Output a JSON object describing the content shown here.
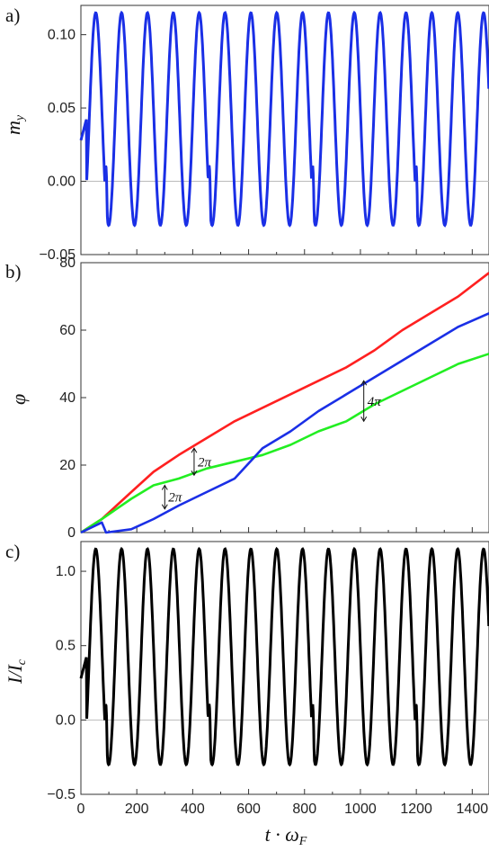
{
  "colors": {
    "red": "#ff2020",
    "green": "#22ee22",
    "blue": "#1a2fe6",
    "black": "#000000"
  },
  "chart_data": [
    {
      "type": "line",
      "panel_label": "a)",
      "ylabel": "m_y",
      "ylim": [
        -0.05,
        0.12
      ],
      "yticks": [
        -0.05,
        0.0,
        0.05,
        0.1
      ],
      "ytick_labels": [
        "−0.05",
        "0.00",
        "0.05",
        "0.10"
      ],
      "xlim": [
        0,
        1460
      ],
      "series_shape": {
        "amplitude_high": 0.115,
        "amplitude_low": -0.03,
        "period": 92.5,
        "phase": 30
      },
      "series": [
        {
          "color": "green",
          "values_desc": "oscillation"
        },
        {
          "color": "red",
          "values_desc": "oscillation"
        },
        {
          "color": "blue",
          "values_desc": "oscillation"
        }
      ]
    },
    {
      "type": "line",
      "panel_label": "b)",
      "ylabel": "φ",
      "ylim": [
        0,
        80
      ],
      "yticks": [
        0,
        20,
        40,
        60,
        80
      ],
      "ytick_labels": [
        "0",
        "20",
        "40",
        "60",
        "80"
      ],
      "xlim": [
        0,
        1460
      ],
      "series": [
        {
          "color": "red",
          "x": [
            0,
            75,
            180,
            260,
            350,
            450,
            550,
            650,
            750,
            850,
            950,
            1050,
            1150,
            1250,
            1350,
            1460
          ],
          "y": [
            0,
            4,
            12,
            18,
            23,
            28,
            33,
            37,
            41,
            45,
            49,
            54,
            60,
            65,
            70,
            77
          ]
        },
        {
          "color": "green",
          "x": [
            0,
            75,
            180,
            260,
            350,
            450,
            550,
            650,
            750,
            850,
            950,
            1050,
            1150,
            1250,
            1350,
            1460
          ],
          "y": [
            0,
            4,
            10,
            14,
            16,
            19,
            21,
            23,
            26,
            30,
            33,
            38,
            42,
            46,
            50,
            53
          ]
        },
        {
          "color": "blue",
          "x": [
            0,
            75,
            90,
            180,
            260,
            350,
            450,
            550,
            650,
            750,
            850,
            950,
            1050,
            1150,
            1250,
            1350,
            1460
          ],
          "y": [
            0,
            3,
            0,
            1,
            4,
            8,
            12,
            16,
            25,
            30,
            36,
            41,
            46,
            51,
            56,
            61,
            65
          ]
        }
      ],
      "annotations": [
        {
          "text": "2π",
          "x": 405,
          "y1": 17,
          "y2": 25
        },
        {
          "text": "2π",
          "x": 300,
          "y1": 7,
          "y2": 14
        },
        {
          "text": "4π",
          "x": 1012,
          "y1": 33,
          "y2": 45
        }
      ]
    },
    {
      "type": "line",
      "panel_label": "c)",
      "ylabel": "I/I_c",
      "xlabel": "t · ω_F",
      "ylim": [
        -0.5,
        1.2
      ],
      "yticks": [
        -0.5,
        0.0,
        0.5,
        1.0
      ],
      "ytick_labels": [
        "−0.5",
        "0.0",
        "0.5",
        "1.0"
      ],
      "xlim": [
        0,
        1460
      ],
      "xticks": [
        0,
        200,
        400,
        600,
        800,
        1000,
        1200,
        1400
      ],
      "xtick_labels": [
        "0",
        "200",
        "400",
        "600",
        "800",
        "1000",
        "1200",
        "1400"
      ],
      "series_shape": {
        "amplitude_high": 1.15,
        "amplitude_low": -0.3,
        "period": 92.5,
        "phase": 30
      },
      "series": [
        {
          "color": "black",
          "values_desc": "oscillation"
        }
      ]
    }
  ]
}
